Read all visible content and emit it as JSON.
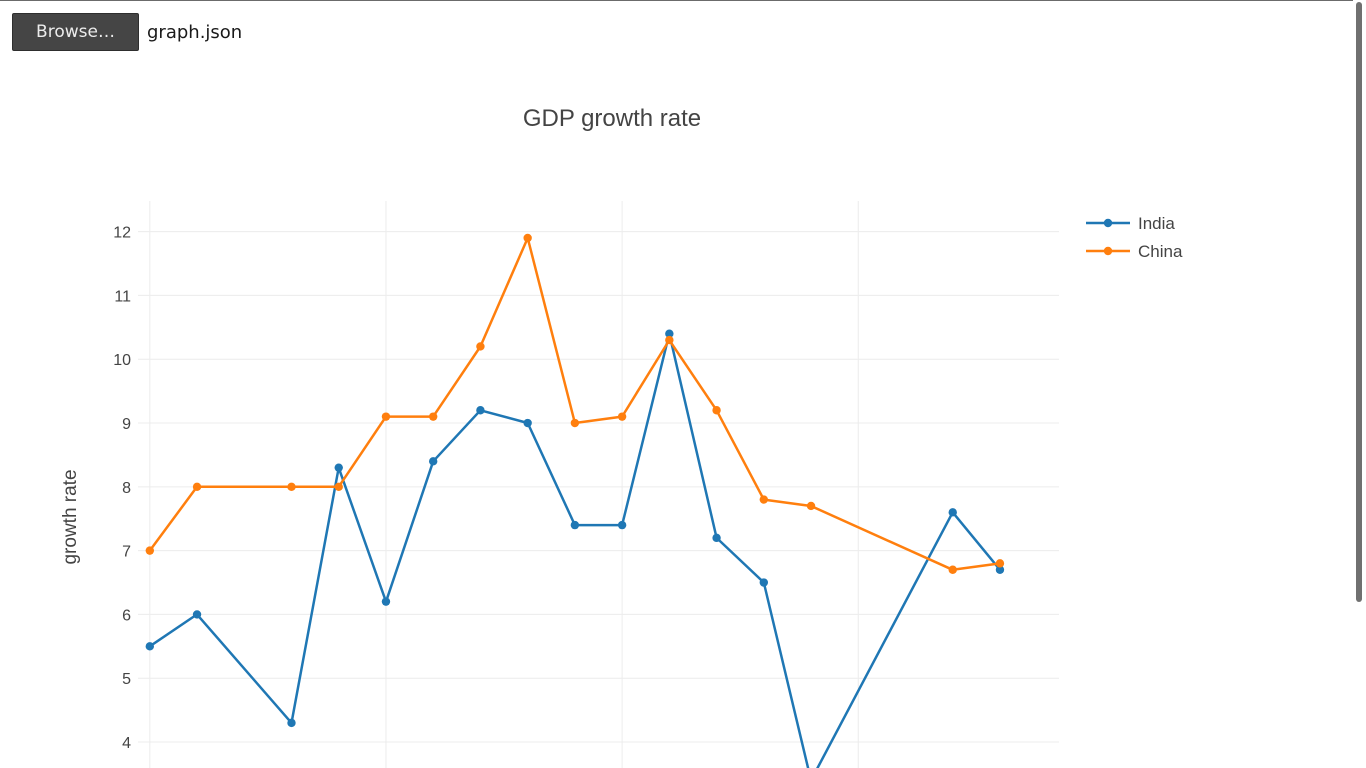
{
  "file_input": {
    "button_label": "Browse…",
    "file_name": "graph.json"
  },
  "chart_data": {
    "type": "line",
    "title": "GDP growth rate",
    "xlabel": "",
    "ylabel": "growth rate",
    "y_ticks": [
      4,
      5,
      6,
      7,
      8,
      9,
      10,
      11,
      12
    ],
    "ylim": [
      3.53,
      12.48
    ],
    "xlim": [
      1989.75,
      2009.25
    ],
    "grid": true,
    "legend_position": "top-right",
    "series": [
      {
        "name": "India",
        "color": "#1f77b4",
        "x": [
          1990,
          1991,
          1993,
          1994,
          1995,
          1996,
          1997,
          1998,
          1999,
          2000,
          2001,
          2002,
          2003,
          2004,
          2007,
          2008
        ],
        "y": [
          5.5,
          6.0,
          4.3,
          8.3,
          6.2,
          8.4,
          9.2,
          9.0,
          7.4,
          7.4,
          10.4,
          7.2,
          6.5,
          3.4,
          7.6,
          6.7
        ]
      },
      {
        "name": "China",
        "color": "#ff7f0e",
        "x": [
          1990,
          1991,
          1993,
          1994,
          1995,
          1996,
          1997,
          1998,
          1999,
          2000,
          2001,
          2002,
          2003,
          2004,
          2007,
          2008
        ],
        "y": [
          7.0,
          8.0,
          8.0,
          8.0,
          9.1,
          9.1,
          10.2,
          11.9,
          9.0,
          9.1,
          10.3,
          9.2,
          7.8,
          7.7,
          6.7,
          6.8
        ]
      }
    ]
  }
}
